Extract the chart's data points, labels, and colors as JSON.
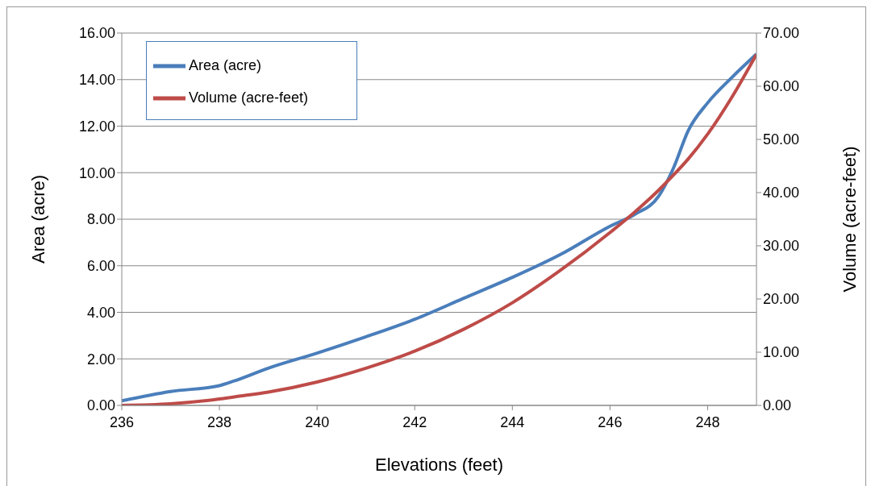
{
  "chart_data": {
    "type": "line",
    "xlabel": "Elevations (feet)",
    "ylabel": "Area (acre)",
    "y2label": "Volume (acre-feet)",
    "x": [
      236,
      237,
      238,
      238.3,
      239,
      240,
      241,
      242,
      243,
      244,
      245,
      246,
      246.5,
      247,
      247.3,
      247.6,
      248,
      248.5,
      249
    ],
    "series": [
      {
        "name": "Area (acre)",
        "color": "#4a7ebb",
        "values": [
          0.2,
          0.6,
          0.85,
          1.05,
          1.6,
          2.25,
          2.95,
          3.7,
          4.6,
          5.5,
          6.5,
          7.7,
          8.2,
          9.0,
          10.2,
          11.8,
          13.0,
          14.1,
          15.1
        ]
      },
      {
        "name": "Volume (acre-feet)",
        "color": "#be4b48",
        "axis": "y2",
        "values": [
          0,
          0.3,
          1.2,
          1.6,
          2.5,
          4.4,
          7.0,
          10.2,
          14.3,
          19.3,
          25.5,
          32.5,
          36.3,
          40.5,
          43.3,
          46.3,
          51,
          58,
          66
        ]
      }
    ],
    "xlim": [
      236,
      249
    ],
    "xticks": [
      236,
      238,
      240,
      242,
      244,
      246,
      248
    ],
    "ylim": [
      0,
      16
    ],
    "yticks": [
      {
        "value": 0,
        "label": "0.00"
      },
      {
        "value": 2,
        "label": "2.00"
      },
      {
        "value": 4,
        "label": "4.00"
      },
      {
        "value": 6,
        "label": "6.00"
      },
      {
        "value": 8,
        "label": "8.00"
      },
      {
        "value": 10,
        "label": "10.00"
      },
      {
        "value": 12,
        "label": "12.00"
      },
      {
        "value": 14,
        "label": "14.00"
      },
      {
        "value": 16,
        "label": "16.00"
      }
    ],
    "y2lim": [
      0,
      70
    ],
    "y2ticks": [
      {
        "value": 0,
        "label": "0.00"
      },
      {
        "value": 10,
        "label": "10.00"
      },
      {
        "value": 20,
        "label": "20.00"
      },
      {
        "value": 30,
        "label": "30.00"
      },
      {
        "value": 40,
        "label": "40.00"
      },
      {
        "value": 50,
        "label": "50.00"
      },
      {
        "value": 60,
        "label": "60.00"
      },
      {
        "value": 70,
        "label": "70.00"
      }
    ],
    "grid": "y",
    "legend": "top left",
    "marker": "none",
    "line_style": "solid"
  }
}
